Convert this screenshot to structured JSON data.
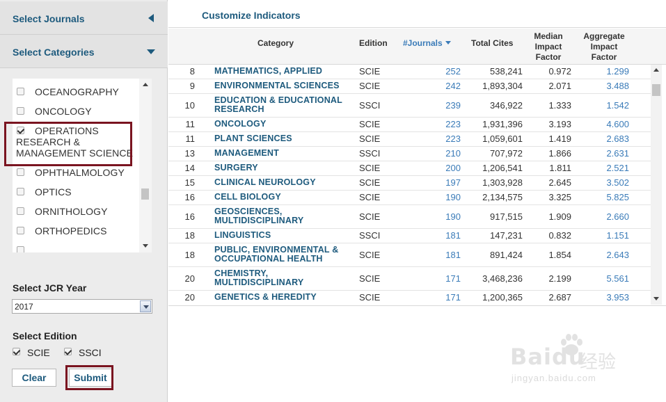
{
  "sidebar": {
    "journals_header": {
      "title": "Select Journals",
      "icon": "chevron-left-icon"
    },
    "categories_header": {
      "title": "Select Categories",
      "icon": "chevron-down-icon"
    },
    "categories": [
      {
        "label": "OCEANOGRAPHY",
        "checked": false
      },
      {
        "label": "ONCOLOGY",
        "checked": false
      },
      {
        "label": "OPERATIONS RESEARCH & MANAGEMENT SCIENCE",
        "checked": true
      },
      {
        "label": "OPHTHALMOLOGY",
        "checked": false
      },
      {
        "label": "OPTICS",
        "checked": false
      },
      {
        "label": "ORNITHOLOGY",
        "checked": false
      },
      {
        "label": "ORTHOPEDICS",
        "checked": false
      },
      {
        "label": "",
        "checked": false
      }
    ],
    "jcr_year": {
      "label": "Select JCR Year",
      "value": "2017"
    },
    "edition": {
      "label": "Select Edition",
      "options": [
        {
          "label": "SCIE",
          "checked": true
        },
        {
          "label": "SSCI",
          "checked": true
        }
      ]
    },
    "clear_label": "Clear",
    "submit_label": "Submit"
  },
  "main": {
    "title": "Customize Indicators",
    "columns": {
      "category": "Category",
      "edition": "Edition",
      "journals": "#Journals",
      "total_cites": "Total Cites",
      "median": "Median Impact Factor",
      "aggregate": "Aggregate Impact Factor"
    },
    "rows": [
      {
        "rank": "8",
        "category": "MATHEMATICS, APPLIED",
        "edition": "SCIE",
        "journals": "252",
        "total_cites": "538,241",
        "median": "0.972",
        "aggregate": "1.299"
      },
      {
        "rank": "9",
        "category": "ENVIRONMENTAL SCIENCES",
        "edition": "SCIE",
        "journals": "242",
        "total_cites": "1,893,304",
        "median": "2.071",
        "aggregate": "3.488"
      },
      {
        "rank": "10",
        "category": "EDUCATION & EDUCATIONAL RESEARCH",
        "edition": "SSCI",
        "journals": "239",
        "total_cites": "346,922",
        "median": "1.333",
        "aggregate": "1.542"
      },
      {
        "rank": "11",
        "category": "ONCOLOGY",
        "edition": "SCIE",
        "journals": "223",
        "total_cites": "1,931,396",
        "median": "3.193",
        "aggregate": "4.600"
      },
      {
        "rank": "11",
        "category": "PLANT SCIENCES",
        "edition": "SCIE",
        "journals": "223",
        "total_cites": "1,059,601",
        "median": "1.419",
        "aggregate": "2.683"
      },
      {
        "rank": "13",
        "category": "MANAGEMENT",
        "edition": "SSCI",
        "journals": "210",
        "total_cites": "707,972",
        "median": "1.866",
        "aggregate": "2.631"
      },
      {
        "rank": "14",
        "category": "SURGERY",
        "edition": "SCIE",
        "journals": "200",
        "total_cites": "1,206,541",
        "median": "1.811",
        "aggregate": "2.521"
      },
      {
        "rank": "15",
        "category": "CLINICAL NEUROLOGY",
        "edition": "SCIE",
        "journals": "197",
        "total_cites": "1,303,928",
        "median": "2.645",
        "aggregate": "3.502"
      },
      {
        "rank": "16",
        "category": "CELL BIOLOGY",
        "edition": "SCIE",
        "journals": "190",
        "total_cites": "2,134,575",
        "median": "3.325",
        "aggregate": "5.825"
      },
      {
        "rank": "16",
        "category": "GEOSCIENCES, MULTIDISCIPLINARY",
        "edition": "SCIE",
        "journals": "190",
        "total_cites": "917,515",
        "median": "1.909",
        "aggregate": "2.660"
      },
      {
        "rank": "18",
        "category": "LINGUISTICS",
        "edition": "SSCI",
        "journals": "181",
        "total_cites": "147,231",
        "median": "0.832",
        "aggregate": "1.151"
      },
      {
        "rank": "18",
        "category": "PUBLIC, ENVIRONMENTAL & OCCUPATIONAL HEALTH",
        "edition": "SCIE",
        "journals": "181",
        "total_cites": "891,424",
        "median": "1.854",
        "aggregate": "2.643"
      },
      {
        "rank": "20",
        "category": "CHEMISTRY, MULTIDISCIPLINARY",
        "edition": "SCIE",
        "journals": "171",
        "total_cites": "3,468,236",
        "median": "2.199",
        "aggregate": "5.561"
      },
      {
        "rank": "20",
        "category": "GENETICS & HEREDITY",
        "edition": "SCIE",
        "journals": "171",
        "total_cites": "1,200,365",
        "median": "2.687",
        "aggregate": "3.953"
      }
    ]
  },
  "watermark": {
    "logo": "Baidu",
    "cn": "经验",
    "url": "jingyan.baidu.com"
  },
  "colors": {
    "link_blue": "#1d5a7d",
    "number_blue": "#3a7bb8",
    "highlight_red": "#7a1420",
    "sidebar_bg": "#ececec"
  }
}
